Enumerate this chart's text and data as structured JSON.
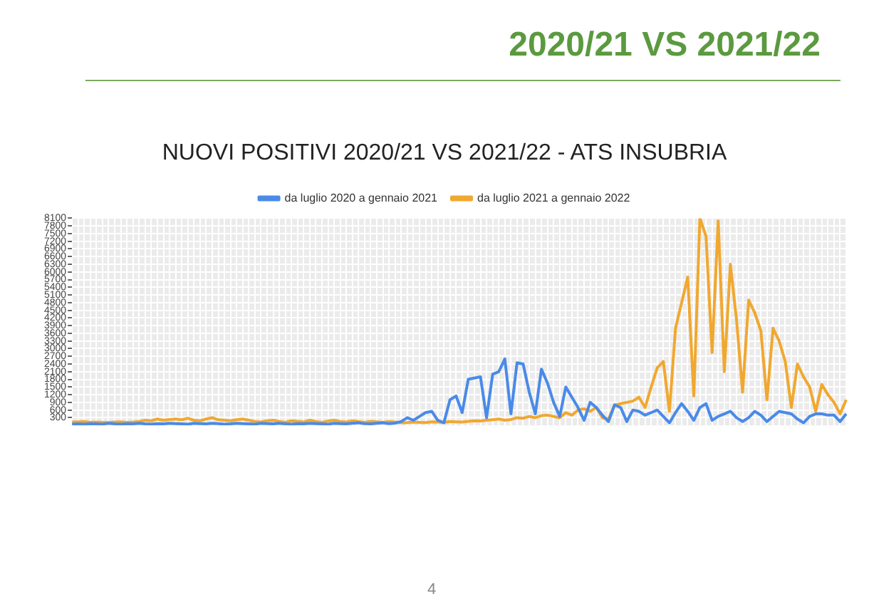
{
  "chart_data": {
    "type": "line",
    "title": "NUOVI POSITIVI 2020/21 VS 2021/22 - ATS INSUBRIA",
    "annotations": [
      "2020/21 VS 2021/22",
      "4"
    ],
    "categories": [
      null,
      null,
      null,
      null,
      null,
      null,
      null,
      null,
      null,
      null,
      null,
      null,
      null,
      null,
      null,
      null,
      null,
      null,
      null,
      null,
      null,
      null,
      null,
      null,
      null,
      null,
      null,
      null,
      null,
      null,
      null,
      null,
      null,
      null,
      null,
      null,
      null,
      null,
      null,
      null,
      null,
      null,
      null,
      null,
      null,
      null,
      null,
      null,
      null,
      null,
      null,
      null,
      null,
      null,
      null,
      null,
      null,
      null,
      null,
      null,
      null,
      null,
      null,
      null,
      null,
      null,
      null,
      null,
      null,
      null,
      null,
      null,
      null,
      null,
      null,
      null,
      null,
      null,
      null,
      null,
      null,
      null,
      null,
      null,
      null,
      null,
      null,
      null,
      null,
      null,
      null,
      null,
      null,
      null,
      null,
      null,
      null,
      null,
      null,
      null,
      null,
      null,
      null,
      null,
      null,
      null,
      null,
      null,
      null,
      null,
      null,
      null,
      null,
      null,
      null,
      null,
      null,
      null,
      null,
      null,
      null,
      null,
      null,
      null,
      null,
      null,
      null,
      null
    ],
    "series": [
      {
        "name": "da luglio 2020 a gennaio 2021",
        "color": "#4a8ae8",
        "values": [
          50,
          60,
          50,
          70,
          60,
          50,
          80,
          60,
          50,
          70,
          60,
          80,
          60,
          50,
          70,
          60,
          80,
          70,
          60,
          50,
          80,
          70,
          60,
          80,
          70,
          50,
          60,
          80,
          70,
          60,
          50,
          80,
          70,
          60,
          80,
          60,
          50,
          70,
          60,
          80,
          70,
          60,
          50,
          80,
          70,
          60,
          80,
          100,
          70,
          60,
          80,
          100,
          70,
          90,
          150,
          300,
          200,
          350,
          500,
          550,
          200,
          100,
          1000,
          1150,
          500,
          1800,
          1850,
          1900,
          300,
          2000,
          2100,
          2600,
          450,
          2450,
          2400,
          1300,
          450,
          2200,
          1650,
          900,
          350,
          1500,
          1100,
          700,
          200,
          900,
          700,
          400,
          150,
          800,
          700,
          150,
          600,
          550,
          400,
          500,
          600,
          350,
          100,
          500,
          850,
          550,
          200,
          700,
          850,
          200,
          350,
          450,
          550,
          300,
          150,
          300,
          550,
          400,
          150,
          350,
          550,
          500,
          450,
          250,
          100,
          350,
          450,
          450,
          400,
          400,
          150,
          450
        ]
      },
      {
        "name": "da luglio 2021 a gennaio 2022",
        "color": "#f0a830",
        "values": [
          130,
          140,
          150,
          120,
          130,
          120,
          110,
          130,
          140,
          120,
          130,
          150,
          200,
          180,
          250,
          200,
          230,
          250,
          220,
          280,
          200,
          180,
          250,
          300,
          220,
          200,
          180,
          220,
          250,
          200,
          150,
          130,
          180,
          200,
          150,
          120,
          180,
          160,
          130,
          200,
          150,
          120,
          170,
          200,
          150,
          130,
          180,
          150,
          120,
          160,
          140,
          120,
          150,
          130,
          100,
          110,
          130,
          120,
          110,
          140,
          130,
          120,
          150,
          140,
          130,
          160,
          180,
          170,
          200,
          220,
          250,
          200,
          230,
          300,
          280,
          350,
          300,
          380,
          400,
          350,
          300,
          500,
          400,
          600,
          650,
          550,
          700,
          300,
          250,
          800,
          850,
          900,
          950,
          1100,
          700,
          1500,
          2250,
          2500,
          550,
          3800,
          4800,
          5800,
          1150,
          8100,
          7400,
          2850,
          8000,
          2100,
          6300,
          4150,
          1300,
          4900,
          4400,
          3700,
          1000,
          3800,
          3300,
          2500,
          700,
          2400,
          1900,
          1500,
          550,
          1600,
          1200,
          900,
          450,
          1000
        ]
      }
    ],
    "ylim": [
      0,
      8100
    ],
    "yticks": [
      300,
      600,
      900,
      1200,
      1500,
      1800,
      2100,
      2400,
      2700,
      3000,
      3300,
      3600,
      3900,
      4200,
      4500,
      4800,
      5100,
      5400,
      5700,
      6000,
      6300,
      6600,
      6900,
      7200,
      7500,
      7800,
      8100
    ],
    "grid": true,
    "legend": "top",
    "line_style": "solid",
    "marker": "none"
  }
}
